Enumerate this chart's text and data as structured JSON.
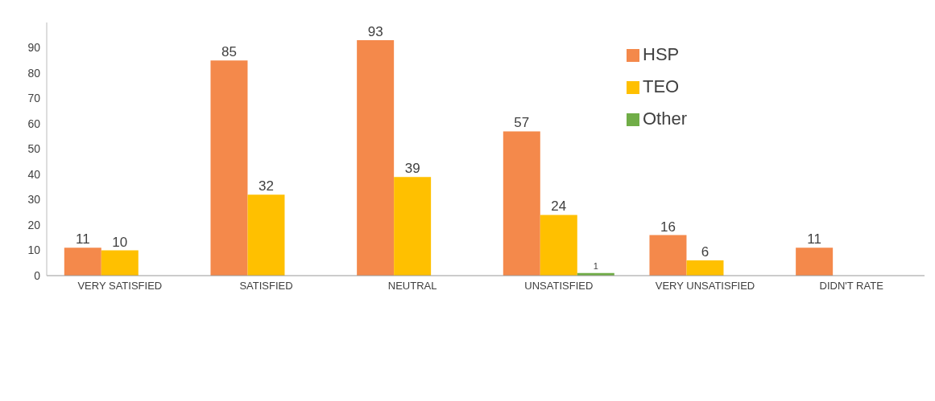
{
  "chart_data": {
    "type": "bar",
    "categories": [
      "VERY SATISFIED",
      "SATISFIED",
      "NEUTRAL",
      "UNSATISFIED",
      "VERY UNSATISFIED",
      "DIDN'T RATE"
    ],
    "series": [
      {
        "name": "HSP",
        "color": "#f4894b",
        "values": [
          11,
          85,
          93,
          57,
          16,
          11
        ]
      },
      {
        "name": "TEO",
        "color": "#ffc000",
        "values": [
          10,
          32,
          39,
          24,
          6,
          null
        ]
      },
      {
        "name": "Other",
        "color": "#70ad47",
        "values": [
          null,
          null,
          null,
          1,
          null,
          null
        ]
      }
    ],
    "ylim": [
      0,
      100
    ],
    "yticks": [
      0,
      10,
      20,
      30,
      40,
      50,
      60,
      70,
      80,
      90
    ],
    "grid": false,
    "legend": "top right",
    "data_labels": true
  }
}
